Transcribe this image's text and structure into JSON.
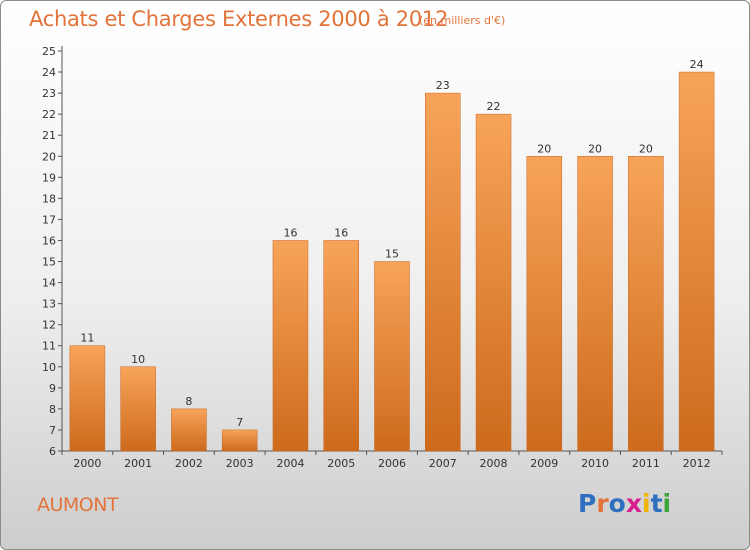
{
  "title": "Achats et Charges Externes 2000 à 2012",
  "subtitle": "(en milliers d'€)",
  "commune": "AUMONT",
  "logo": {
    "text": "Proxiti",
    "colors": [
      "#2f6fbf",
      "#e2733a",
      "#2f6fbf",
      "#d81e8c",
      "#f0b400",
      "#2f6fbf",
      "#3aa53a"
    ]
  },
  "colors": {
    "bar_top": "#f7a45a",
    "bar_bottom": "#cd6a1c",
    "accent": "#e2733a"
  },
  "chart_data": {
    "type": "bar",
    "title": "Achats et Charges Externes 2000 à 2012",
    "categories": [
      "2000",
      "2001",
      "2002",
      "2003",
      "2004",
      "2005",
      "2006",
      "2007",
      "2008",
      "2009",
      "2010",
      "2011",
      "2012"
    ],
    "values": [
      11,
      10,
      8,
      7,
      16,
      16,
      15,
      23,
      22,
      20,
      20,
      20,
      24
    ],
    "ylim": [
      6,
      25
    ],
    "yticks": [
      6,
      7,
      8,
      9,
      10,
      11,
      12,
      13,
      14,
      15,
      16,
      17,
      18,
      19,
      20,
      21,
      22,
      23,
      24,
      25
    ],
    "xlabel": "",
    "ylabel": "",
    "grid": false,
    "legend": "none"
  }
}
